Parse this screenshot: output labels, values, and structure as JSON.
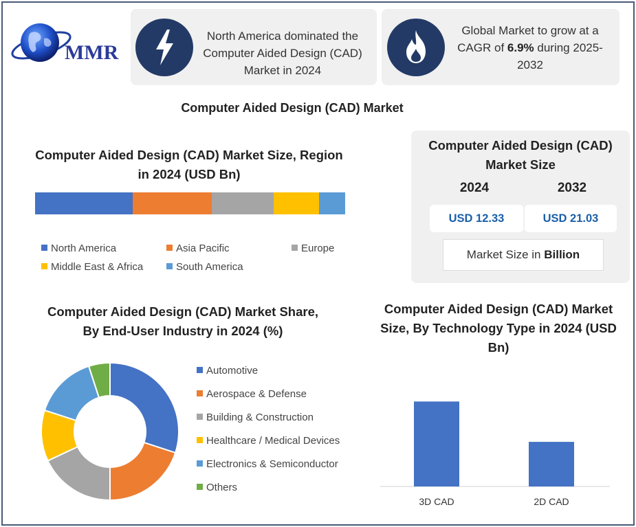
{
  "logo": {
    "text": "MMR"
  },
  "info_boxes": [
    {
      "icon": "lightning-icon",
      "text": "North America dominated the Computer Aided Design (CAD) Market in 2024"
    },
    {
      "icon": "flame-icon",
      "text_before": "Global Market to grow at a CAGR of ",
      "highlight": "6.9%",
      "text_after": " during 2025-2032"
    }
  ],
  "main_title": "Computer Aided Design (CAD) Market",
  "region_chart": {
    "title": "Computer Aided Design (CAD) Market Size, Region in 2024 (USD Bn)"
  },
  "market_size": {
    "title": "Computer Aided Design (CAD) Market Size",
    "year_1": "2024",
    "year_2": "2032",
    "value_1": "USD 12.33",
    "value_2": "USD 21.03",
    "unit_prefix": "Market Size in ",
    "unit_bold": "Billion"
  },
  "share_chart": {
    "title": "Computer Aided Design (CAD) Market Share, By End-User Industry in 2024 (%)"
  },
  "tech_chart": {
    "title": "Computer Aided Design (CAD) Market Size, By Technology Type in 2024 (USD Bn)"
  },
  "chart_data": [
    {
      "type": "bar",
      "orientation": "stacked-horizontal",
      "title": "Computer Aided Design (CAD) Market Size, Region in 2024 (USD Bn)",
      "series": [
        {
          "name": "North America",
          "value": 31.5,
          "color": "#4472c4"
        },
        {
          "name": "Asia Pacific",
          "value": 25.5,
          "color": "#ed7d31"
        },
        {
          "name": "Europe",
          "value": 20,
          "color": "#a5a5a5"
        },
        {
          "name": "Middle East & Africa",
          "value": 14.5,
          "color": "#ffc000"
        },
        {
          "name": "South America",
          "value": 8.5,
          "color": "#5b9bd5"
        }
      ],
      "legend_position": "bottom"
    },
    {
      "type": "pie",
      "style": "donut",
      "title": "Computer Aided Design (CAD) Market Share, By End-User Industry in 2024 (%)",
      "slices": [
        {
          "name": "Automotive",
          "value": 30,
          "color": "#4472c4"
        },
        {
          "name": "Aerospace & Defense",
          "value": 20,
          "color": "#ed7d31"
        },
        {
          "name": "Building & Construction",
          "value": 18,
          "color": "#a5a5a5"
        },
        {
          "name": "Healthcare / Medical Devices",
          "value": 12,
          "color": "#ffc000"
        },
        {
          "name": "Electronics & Semiconductor",
          "value": 15,
          "color": "#5b9bd5"
        },
        {
          "name": "Others",
          "value": 5,
          "color": "#70ad47"
        }
      ],
      "legend_position": "right"
    },
    {
      "type": "bar",
      "title": "Computer Aided Design (CAD) Market Size, By Technology Type in 2024 (USD Bn)",
      "categories": [
        "3D CAD",
        "2D CAD"
      ],
      "values": [
        8,
        4.2
      ],
      "ylim": [
        0,
        10
      ],
      "color": "#4472c4",
      "grid": false
    }
  ]
}
